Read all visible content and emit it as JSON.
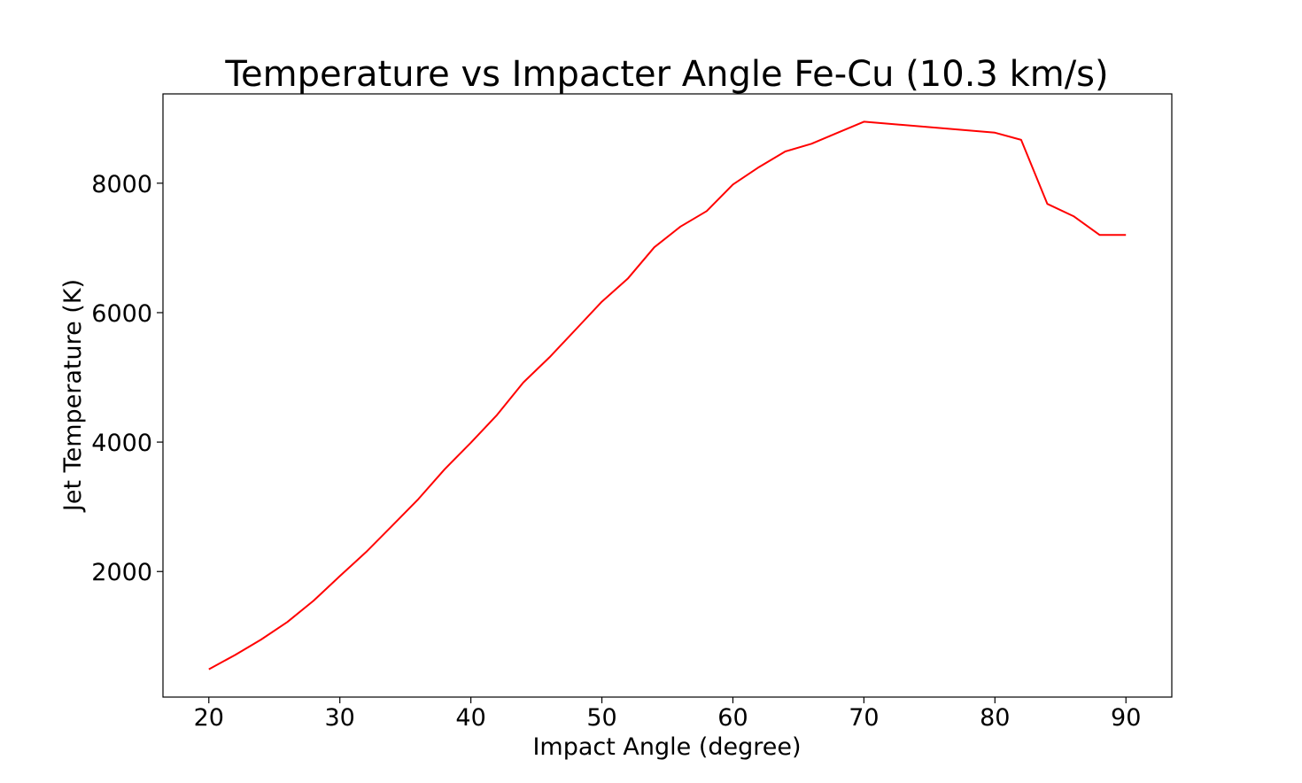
{
  "chart_data": {
    "type": "line",
    "title": "Temperature vs Impacter Angle Fe-Cu (10.3 km/s)",
    "xlabel": "Impact Angle (degree)",
    "ylabel": "Jet Temperature (K)",
    "xlim": [
      16.5,
      93.5
    ],
    "ylim": [
      60,
      9380
    ],
    "xticks": [
      20,
      30,
      40,
      50,
      60,
      70,
      80,
      90
    ],
    "yticks": [
      2000,
      4000,
      6000,
      8000
    ],
    "grid": false,
    "series": [
      {
        "color": "#ff0000",
        "x": [
          20,
          22,
          24,
          26,
          28,
          30,
          32,
          34,
          36,
          38,
          40,
          42,
          44,
          46,
          48,
          50,
          52,
          54,
          56,
          58,
          60,
          62,
          64,
          66,
          68,
          70,
          80,
          82,
          84,
          86,
          88,
          90
        ],
        "y": [
          490,
          710,
          950,
          1220,
          1550,
          1930,
          2300,
          2710,
          3120,
          3580,
          3990,
          4420,
          4920,
          5310,
          5740,
          6170,
          6530,
          7010,
          7330,
          7570,
          7980,
          8250,
          8490,
          8610,
          8780,
          8950,
          8780,
          8670,
          7680,
          7490,
          7200,
          7200
        ]
      }
    ]
  }
}
